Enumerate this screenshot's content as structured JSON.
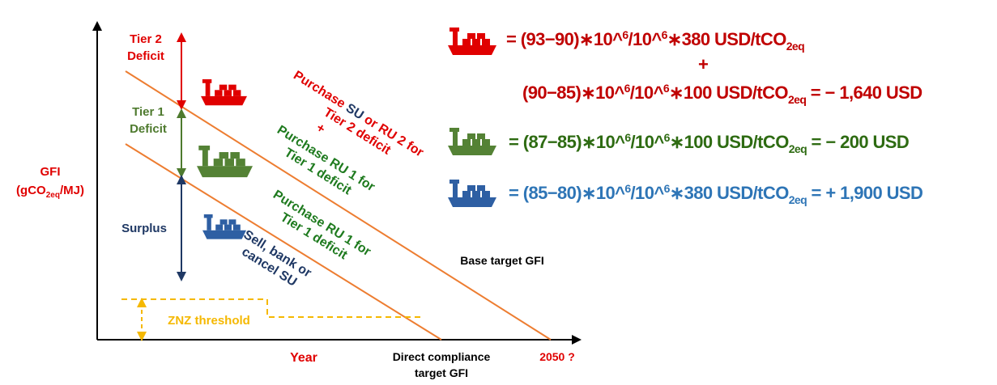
{
  "y_axis": {
    "title": "GFI",
    "unit": [
      "(gCO",
      "2eq",
      "/MJ)"
    ]
  },
  "x_axis": {
    "title": "Year",
    "end": "2050 ?",
    "direct": [
      "Direct compliance",
      "target GFI"
    ]
  },
  "zones": {
    "tier2": [
      "Tier 2",
      "Deficit"
    ],
    "tier1": [
      "Tier 1",
      "Deficit"
    ],
    "surplus": "Surplus"
  },
  "lines": {
    "base": "Base target GFI",
    "znz": "ZNZ threshold"
  },
  "actions": {
    "tier2": {
      "line1": [
        "Purchase ",
        "SU",
        " or RU 2 for"
      ],
      "line2": "Tier 2 deficit",
      "plus": "+"
    },
    "tier1_upper": [
      "Purchase RU 1 for",
      "Tier 1 deficit"
    ],
    "tier1_lower": [
      "Purchase RU 1 for",
      "Tier 1 deficit"
    ],
    "surplus": [
      "Sell, bank or",
      "cancel SU"
    ]
  },
  "equations": {
    "red_1": [
      "= (93−90)∗10^",
      "6",
      "/10^",
      "6",
      "∗380 USD/tCO",
      "2eq"
    ],
    "plus": "+",
    "red_2": [
      "(90−85)∗10^",
      "6",
      "/10^",
      "6",
      "∗100 USD/tCO",
      "2eq",
      " = − 1,640 USD"
    ],
    "green": [
      "= (87−85)∗10^",
      "6",
      "/10^",
      "6",
      "∗100 USD/tCO",
      "2eq",
      " = − 200 USD"
    ],
    "blue": [
      "= (85−80)∗10^",
      "6",
      "/10^",
      "6",
      "∗380 USD/tCO",
      "2eq",
      " = + 1,900 USD"
    ]
  }
}
